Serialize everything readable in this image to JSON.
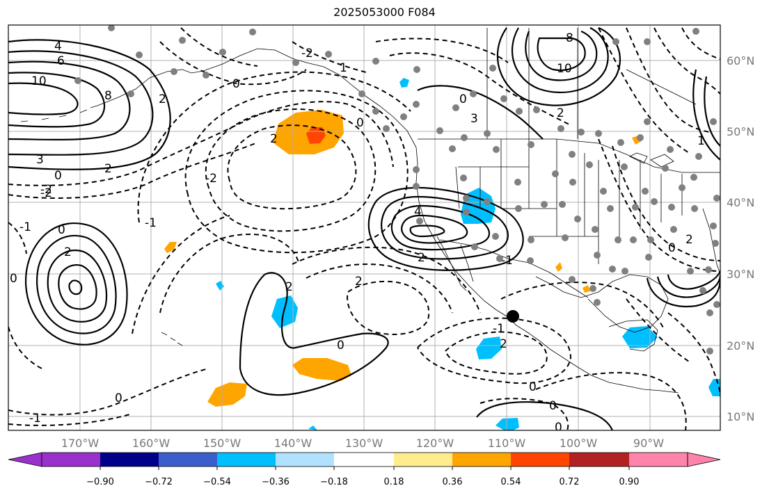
{
  "title": "2025053000 F084",
  "map": {
    "lon_labels": [
      "170°W",
      "160°W",
      "150°W",
      "140°W",
      "130°W",
      "120°W",
      "110°W",
      "100°W",
      "90°W"
    ],
    "lat_labels": [
      "60°N",
      "50°N",
      "40°N",
      "30°N",
      "20°N",
      "10°N"
    ],
    "grid_color": "#b0b0b0",
    "contour_labels": [
      "4",
      "6",
      "10",
      "8",
      "2",
      "3",
      "2",
      "0",
      "-2",
      "2",
      "-1",
      "0",
      "0",
      "-1",
      "-2",
      "0",
      "8",
      "10",
      "2",
      "0",
      "3",
      "4",
      "2",
      "2",
      "0",
      "2",
      "-2",
      "-1",
      "2",
      "-2",
      "1",
      "0",
      "0",
      "0",
      "-1",
      "0",
      "-1",
      "2",
      "0",
      "0",
      "2",
      "1"
    ],
    "positive_contour_style": "solid",
    "negative_contour_style": "dashed",
    "dot_color": "#808080",
    "marker": "black-dot"
  },
  "colorbar": {
    "ticks": [
      "−0.90",
      "−0.72",
      "−0.54",
      "−0.36",
      "−0.18",
      "0.18",
      "0.36",
      "0.54",
      "0.72",
      "0.90"
    ],
    "colors": [
      "#9932cc",
      "#00008b",
      "#3a5fcd",
      "#00bfff",
      "#b0e2ff",
      "#ffffff",
      "#ffec8b",
      "#ffa500",
      "#ff4500",
      "#b22222",
      "#ff83aa"
    ]
  }
}
